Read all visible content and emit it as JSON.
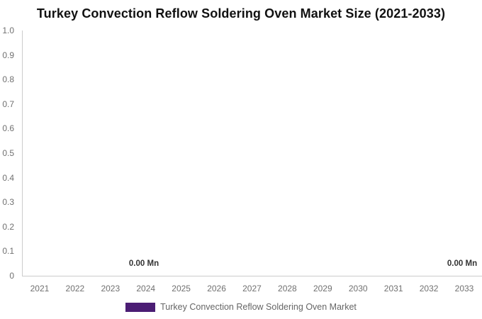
{
  "title": "Turkey Convection Reflow Soldering Oven Market Size (2021-2033)",
  "chart_data": {
    "type": "bar",
    "categories": [
      "2021",
      "2022",
      "2023",
      "2024",
      "2025",
      "2026",
      "2027",
      "2028",
      "2029",
      "2030",
      "2031",
      "2032",
      "2033"
    ],
    "series": [
      {
        "name": "Turkey Convection Reflow Soldering Oven Market",
        "values": [
          0,
          0,
          0,
          0,
          0,
          0,
          0,
          0,
          0,
          0,
          0,
          0,
          0
        ]
      }
    ],
    "title": "Turkey Convection Reflow Soldering Oven Market Size (2021-2033)",
    "xlabel": "",
    "ylabel": "",
    "ylim": [
      0,
      1.0
    ],
    "y_tick_labels": [
      "1.0",
      "0.9",
      "0.8",
      "0.7",
      "0.6",
      "0.5",
      "0.4",
      "0.3",
      "0.2",
      "0.1",
      "0"
    ],
    "grid": false,
    "legend_position": "bottom",
    "value_unit": "Mn",
    "annotations": [
      {
        "x": "2024",
        "label": "0.00 Mn"
      },
      {
        "x": "2033",
        "label": "0.00 Mn"
      }
    ]
  },
  "axes": {
    "y_tick_labels": [
      "1.0",
      "0.9",
      "0.8",
      "0.7",
      "0.6",
      "0.5",
      "0.4",
      "0.3",
      "0.2",
      "0.1",
      "0"
    ],
    "x_tick_labels": [
      "2021",
      "2022",
      "2023",
      "2024",
      "2025",
      "2026",
      "2027",
      "2028",
      "2029",
      "2030",
      "2031",
      "2032",
      "2033"
    ]
  },
  "legend": {
    "label": "Turkey Convection Reflow Soldering Oven Market",
    "swatch_color": "#4b1d74"
  },
  "colors": {
    "series": "#4b1d74",
    "axis_line": "#cccccc",
    "tick_text": "#707070",
    "title_text": "#111111",
    "data_label_text": "#333333",
    "legend_text": "#666666",
    "background": "#ffffff"
  }
}
